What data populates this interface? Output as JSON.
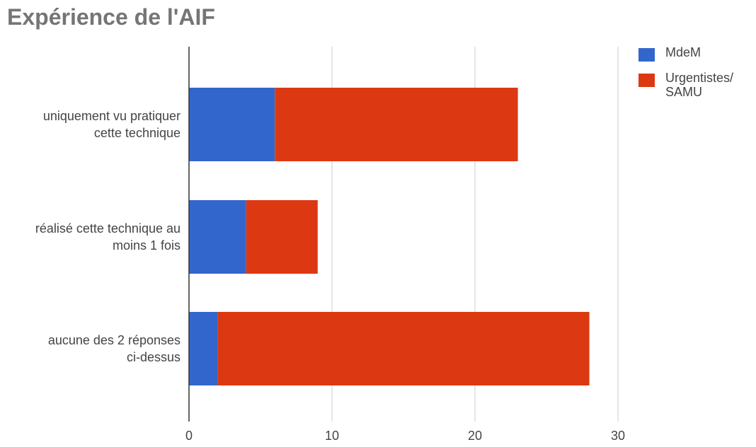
{
  "chart_data": {
    "type": "bar",
    "orientation": "horizontal",
    "stacked": true,
    "title": "Expérience de l'AIF",
    "categories": [
      [
        "uniquement vu pratiquer",
        "cette technique"
      ],
      [
        "réalisé cette technique au",
        "moins 1 fois"
      ],
      [
        "aucune des 2 réponses",
        "ci-dessus"
      ]
    ],
    "series": [
      {
        "name": "MdeM",
        "color": "#3366cc",
        "values": [
          6,
          4,
          2
        ]
      },
      {
        "name": "Urgentistes/ SAMU",
        "color": "#dc3912",
        "values": [
          17,
          5,
          26
        ]
      }
    ],
    "xlim": [
      0,
      30
    ],
    "xticks": [
      0,
      10,
      20,
      30
    ],
    "grid": true,
    "legend_position": "right"
  }
}
